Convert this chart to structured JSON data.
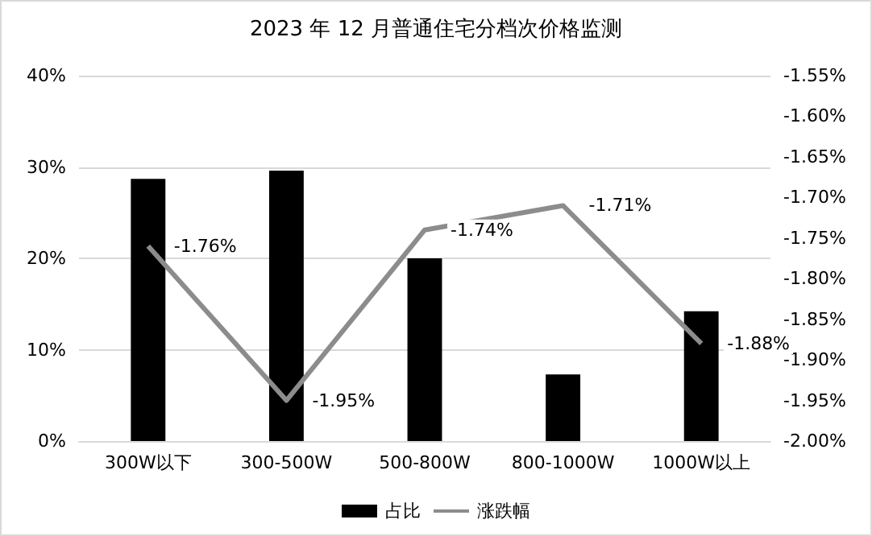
{
  "chart_data": {
    "type": "bar",
    "title": "2023 年 12 月普通住宅分档次价格监测",
    "categories": [
      "300W以下",
      "300-500W",
      "500-800W",
      "800-1000W",
      "1000W以上"
    ],
    "series": [
      {
        "name": "占比",
        "color": "#000000",
        "values": [
          28.7,
          29.6,
          20.0,
          7.3,
          14.2
        ]
      },
      {
        "name": "涨跌幅",
        "type": "line",
        "axis": "y2",
        "color": "#8c8c8c",
        "marker": "none",
        "values": [
          -1.76,
          -1.95,
          -1.74,
          -1.71,
          -1.88
        ],
        "value_labels": [
          "-1.76%",
          "-1.95%",
          "-1.74%",
          "-1.71%",
          "-1.88%"
        ]
      }
    ],
    "ylim": [
      0,
      40
    ],
    "yticks": [
      {
        "value": 0,
        "label": "0%"
      },
      {
        "value": 10,
        "label": "10%"
      },
      {
        "value": 20,
        "label": "20%"
      },
      {
        "value": 30,
        "label": "30%"
      },
      {
        "value": 40,
        "label": "40%"
      }
    ],
    "y2lim": [
      -2.0,
      -1.55
    ],
    "y2ticks": [
      {
        "value": -2.0,
        "label": "-2.00%"
      },
      {
        "value": -1.95,
        "label": "-1.95%"
      },
      {
        "value": -1.9,
        "label": "-1.90%"
      },
      {
        "value": -1.85,
        "label": "-1.85%"
      },
      {
        "value": -1.8,
        "label": "-1.80%"
      },
      {
        "value": -1.75,
        "label": "-1.75%"
      },
      {
        "value": -1.7,
        "label": "-1.70%"
      },
      {
        "value": -1.65,
        "label": "-1.65%"
      },
      {
        "value": -1.6,
        "label": "-1.60%"
      },
      {
        "value": -1.55,
        "label": "-1.55%"
      }
    ],
    "grid": "y",
    "legend": "bottom"
  }
}
